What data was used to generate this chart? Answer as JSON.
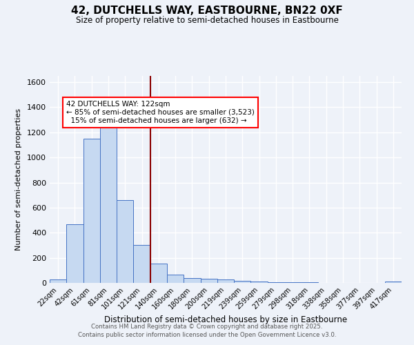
{
  "title": "42, DUTCHELLS WAY, EASTBOURNE, BN22 0XF",
  "subtitle": "Size of property relative to semi-detached houses in Eastbourne",
  "xlabel": "Distribution of semi-detached houses by size in Eastbourne",
  "ylabel": "Number of semi-detached properties",
  "categories": [
    "22sqm",
    "42sqm",
    "61sqm",
    "81sqm",
    "101sqm",
    "121sqm",
    "140sqm",
    "160sqm",
    "180sqm",
    "200sqm",
    "219sqm",
    "239sqm",
    "259sqm",
    "279sqm",
    "298sqm",
    "318sqm",
    "338sqm",
    "358sqm",
    "377sqm",
    "397sqm",
    "417sqm"
  ],
  "values": [
    25,
    470,
    1150,
    1240,
    660,
    300,
    155,
    65,
    40,
    35,
    30,
    15,
    10,
    8,
    5,
    3,
    2,
    1,
    1,
    1,
    10
  ],
  "bar_color": "#c6d9f1",
  "bar_edge_color": "#4472c4",
  "vline_color": "#8b0000",
  "property_label": "42 DUTCHELLS WAY: 122sqm",
  "pct_smaller": "85%",
  "n_smaller": "3,523",
  "pct_larger": "15%",
  "n_larger": "632",
  "ylim": [
    0,
    1650
  ],
  "yticks": [
    0,
    200,
    400,
    600,
    800,
    1000,
    1200,
    1400,
    1600
  ],
  "background_color": "#eef2f9",
  "grid_color": "#ffffff",
  "footer_line1": "Contains HM Land Registry data © Crown copyright and database right 2025.",
  "footer_line2": "Contains public sector information licensed under the Open Government Licence v3.0."
}
